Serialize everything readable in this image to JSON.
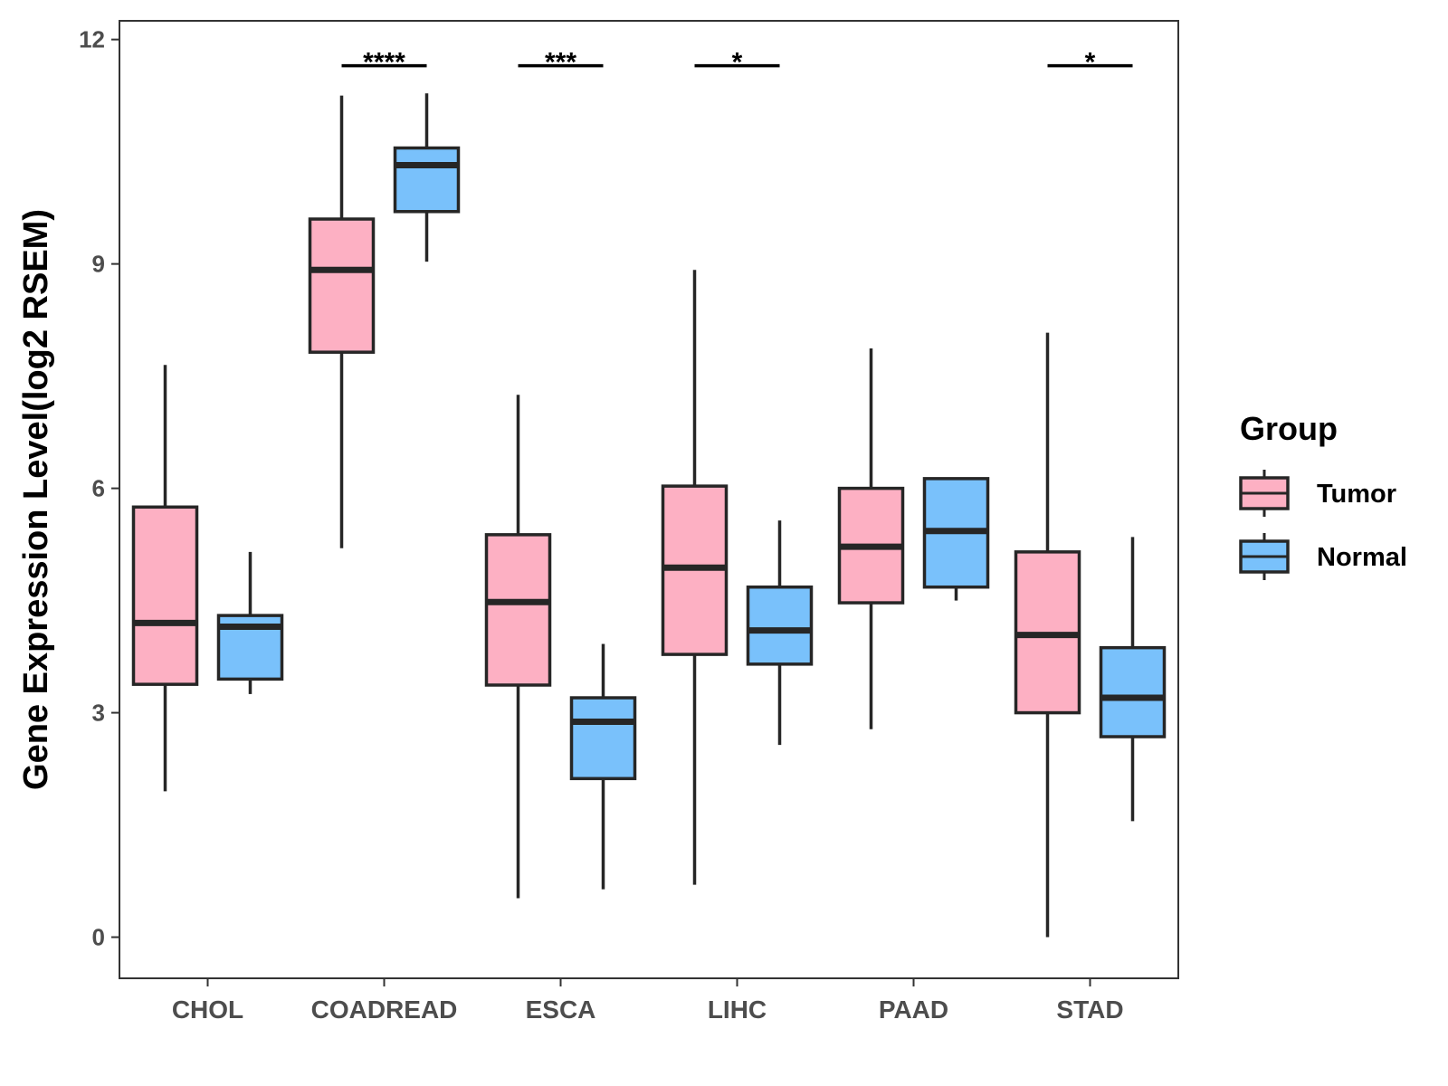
{
  "chart_data": {
    "type": "boxplot",
    "title": "",
    "xlabel": "",
    "ylabel": "Gene Expression Level(log2 RSEM)",
    "ylim": [
      -0.55,
      12.25
    ],
    "yticks": [
      0,
      3,
      6,
      9,
      12
    ],
    "categories": [
      "CHOL",
      "COADREAD",
      "ESCA",
      "LIHC",
      "PAAD",
      "STAD"
    ],
    "legend": {
      "title": "Group",
      "position": "right",
      "entries": [
        "Tumor",
        "Normal"
      ]
    },
    "colors": {
      "Tumor": "#fdb0c3",
      "Normal": "#79c1fb",
      "outline": "#262626"
    },
    "series": [
      {
        "name": "Tumor",
        "boxes": [
          {
            "category": "CHOL",
            "min": 1.95,
            "q1": 3.38,
            "median": 4.2,
            "q3": 5.75,
            "max": 7.65
          },
          {
            "category": "COADREAD",
            "min": 5.2,
            "q1": 7.82,
            "median": 8.92,
            "q3": 9.6,
            "max": 11.25
          },
          {
            "category": "ESCA",
            "min": 0.52,
            "q1": 3.37,
            "median": 4.48,
            "q3": 5.38,
            "max": 7.25
          },
          {
            "category": "LIHC",
            "min": 0.7,
            "q1": 3.78,
            "median": 4.94,
            "q3": 6.03,
            "max": 8.92
          },
          {
            "category": "PAAD",
            "min": 2.78,
            "q1": 4.47,
            "median": 5.22,
            "q3": 6.0,
            "max": 7.87
          },
          {
            "category": "STAD",
            "min": 0.0,
            "q1": 3.0,
            "median": 4.04,
            "q3": 5.15,
            "max": 8.08
          }
        ]
      },
      {
        "name": "Normal",
        "boxes": [
          {
            "category": "CHOL",
            "min": 3.25,
            "q1": 3.45,
            "median": 4.15,
            "q3": 4.3,
            "max": 5.15
          },
          {
            "category": "COADREAD",
            "min": 9.03,
            "q1": 9.7,
            "median": 10.32,
            "q3": 10.55,
            "max": 11.28
          },
          {
            "category": "ESCA",
            "min": 0.64,
            "q1": 2.12,
            "median": 2.88,
            "q3": 3.2,
            "max": 3.92
          },
          {
            "category": "LIHC",
            "min": 2.57,
            "q1": 3.65,
            "median": 4.1,
            "q3": 4.68,
            "max": 5.57
          },
          {
            "category": "PAAD",
            "min": 4.5,
            "q1": 4.68,
            "median": 5.43,
            "q3": 6.13,
            "max": 6.13
          },
          {
            "category": "STAD",
            "min": 1.55,
            "q1": 2.68,
            "median": 3.2,
            "q3": 3.87,
            "max": 5.35
          }
        ]
      }
    ],
    "significance": [
      {
        "category": "COADREAD",
        "label": "****",
        "y": 11.65
      },
      {
        "category": "ESCA",
        "label": "***",
        "y": 11.65
      },
      {
        "category": "LIHC",
        "label": "*",
        "y": 11.65
      },
      {
        "category": "STAD",
        "label": "*",
        "y": 11.65
      }
    ]
  }
}
